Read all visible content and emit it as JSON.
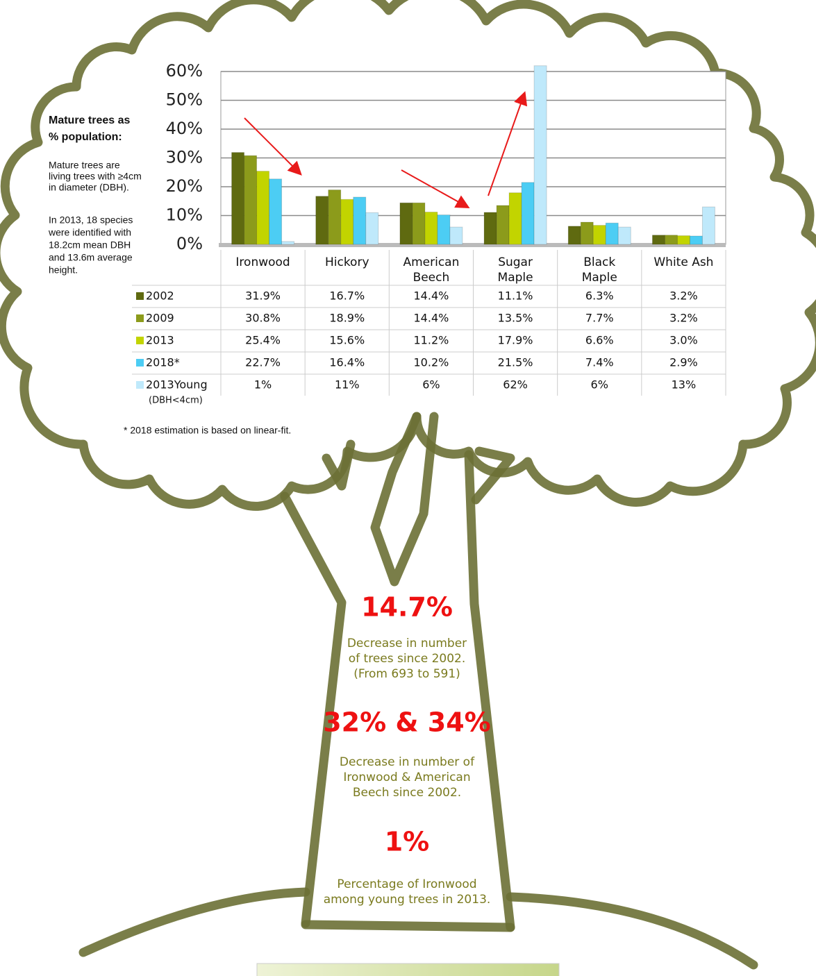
{
  "chart_data": {
    "type": "bar",
    "categories": [
      "Ironwood",
      "Hickory",
      "American Beech",
      "Sugar Maple",
      "Black Maple",
      "White Ash"
    ],
    "series": [
      {
        "name": "2002",
        "color": "#5f6a10",
        "values": [
          31.9,
          16.7,
          14.4,
          11.1,
          6.3,
          3.2
        ],
        "value_labels": [
          "31.9%",
          "16.7%",
          "14.4%",
          "11.1%",
          "6.3%",
          "3.2%"
        ]
      },
      {
        "name": "2009",
        "color": "#8c9b1b",
        "values": [
          30.8,
          18.9,
          14.4,
          13.5,
          7.7,
          3.2
        ],
        "value_labels": [
          "30.8%",
          "18.9%",
          "14.4%",
          "13.5%",
          "7.7%",
          "3.2%"
        ]
      },
      {
        "name": "2013",
        "color": "#c2d400",
        "values": [
          25.4,
          15.6,
          11.2,
          17.9,
          6.6,
          3.0
        ],
        "value_labels": [
          "25.4%",
          "15.6%",
          "11.2%",
          "17.9%",
          "6.6%",
          "3.0%"
        ]
      },
      {
        "name": "2018*",
        "color": "#4ccdf4",
        "values": [
          22.7,
          16.4,
          10.2,
          21.5,
          7.4,
          2.9
        ],
        "value_labels": [
          "22.7%",
          "16.4%",
          "10.2%",
          "21.5%",
          "7.4%",
          "2.9%"
        ]
      },
      {
        "name": "2013Young",
        "note": "(DBH<4cm)",
        "color": "#bfe9fb",
        "values": [
          1,
          11,
          6,
          62,
          6,
          13
        ],
        "value_labels": [
          "1%",
          "11%",
          "6%",
          "62%",
          "6%",
          "13%"
        ]
      }
    ],
    "ylim": [
      0,
      60
    ],
    "yticks": [
      {
        "value": 0,
        "label": "0%"
      },
      {
        "value": 10,
        "label": "10%"
      },
      {
        "value": 20,
        "label": "20%"
      },
      {
        "value": 30,
        "label": "30%"
      },
      {
        "value": 40,
        "label": "40%"
      },
      {
        "value": 50,
        "label": "50%"
      },
      {
        "value": 60,
        "label": "60%"
      }
    ],
    "grid": true
  },
  "side_note": {
    "title": [
      "Mature trees as",
      "% population:"
    ],
    "paragraph1": [
      "Mature trees are",
      "living trees with ≥4cm",
      "in diameter (DBH)."
    ],
    "paragraph2": [
      "In 2013, 18 species",
      "were identified with",
      "18.2cm mean DBH",
      "and 13.6m average",
      "height."
    ]
  },
  "footnote": "* 2018 estimation is based on linear-fit.",
  "stats": [
    {
      "value": "14.7%",
      "lines": [
        "Decrease in number",
        "of trees since 2002.",
        "(From 693 to 591)"
      ]
    },
    {
      "value": "32% & 34%",
      "lines": [
        "Decrease in number of",
        "Ironwood & American",
        "Beech since 2002."
      ]
    },
    {
      "value": "1%",
      "lines": [
        "Percentage of Ironwood",
        "among young trees in 2013."
      ]
    }
  ]
}
